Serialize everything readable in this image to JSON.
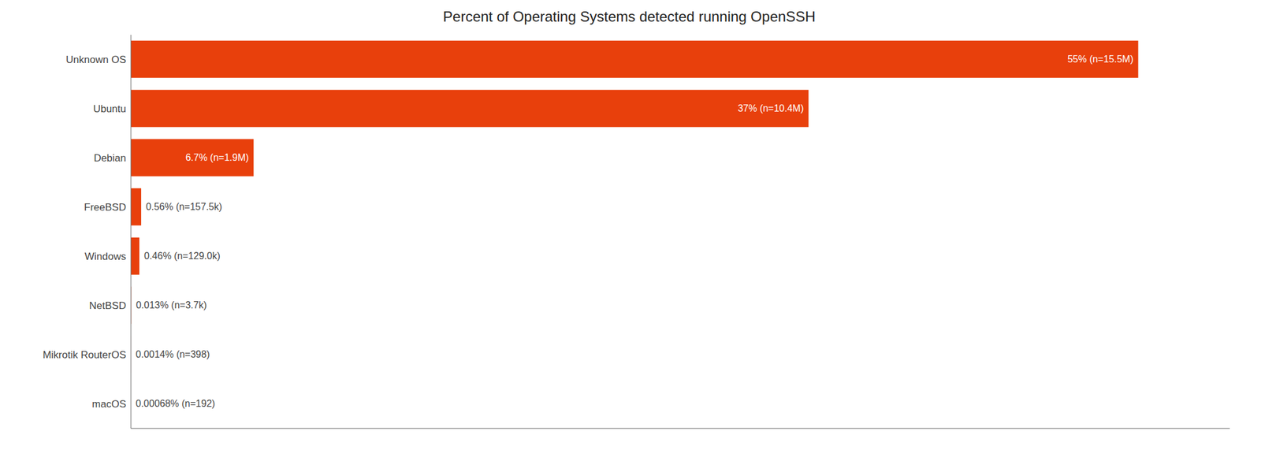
{
  "chart_data": {
    "type": "bar",
    "orientation": "horizontal",
    "title": "Percent of Operating Systems detected running OpenSSH",
    "categories": [
      "Unknown OS",
      "Ubuntu",
      "Debian",
      "FreeBSD",
      "Windows",
      "NetBSD",
      "Mikrotik RouterOS",
      "macOS"
    ],
    "values": [
      55.0,
      37.0,
      6.7,
      0.56,
      0.46,
      0.013,
      0.0014,
      0.00068
    ],
    "value_labels": [
      "55% (n=15.5M)",
      "37% (n=10.4M)",
      "6.7% (n=1.9M)",
      "0.56% (n=157.5k)",
      "0.46% (n=129.0k)",
      "0.013% (n=3.7k)",
      "0.0014% (n=398)",
      "0.00068% (n=192)"
    ],
    "color": "#E8400C",
    "xlim": [
      0,
      60
    ],
    "tick_labels": "y",
    "data_labels": true,
    "grid": false
  }
}
